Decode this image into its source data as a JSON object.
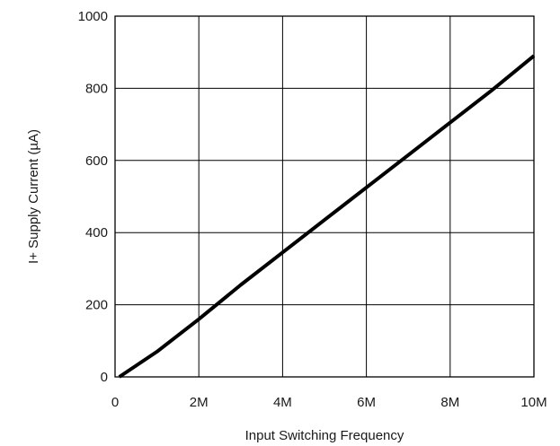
{
  "chart_data": {
    "type": "line",
    "title": "",
    "xlabel": "Input Switching Frequency",
    "ylabel": "I+ Supply Current (µA)",
    "xlim": [
      0,
      10000000
    ],
    "ylim": [
      0,
      1000
    ],
    "grid": true,
    "x_ticks": [
      {
        "value": 0,
        "label": "0"
      },
      {
        "value": 2000000,
        "label": "2M"
      },
      {
        "value": 4000000,
        "label": "4M"
      },
      {
        "value": 6000000,
        "label": "6M"
      },
      {
        "value": 8000000,
        "label": "8M"
      },
      {
        "value": 10000000,
        "label": "10M"
      }
    ],
    "y_ticks": [
      {
        "value": 0,
        "label": "0"
      },
      {
        "value": 200,
        "label": "200"
      },
      {
        "value": 400,
        "label": "400"
      },
      {
        "value": 600,
        "label": "600"
      },
      {
        "value": 800,
        "label": "800"
      },
      {
        "value": 1000,
        "label": "1000"
      }
    ],
    "series": [
      {
        "color": "#000000",
        "points": [
          {
            "x": 100000,
            "y": 0
          },
          {
            "x": 1000000,
            "y": 70
          },
          {
            "x": 2000000,
            "y": 160
          },
          {
            "x": 3000000,
            "y": 255
          },
          {
            "x": 4000000,
            "y": 345
          },
          {
            "x": 5000000,
            "y": 435
          },
          {
            "x": 6000000,
            "y": 525
          },
          {
            "x": 7000000,
            "y": 615
          },
          {
            "x": 8000000,
            "y": 705
          },
          {
            "x": 9000000,
            "y": 795
          },
          {
            "x": 10000000,
            "y": 890
          }
        ]
      }
    ]
  }
}
